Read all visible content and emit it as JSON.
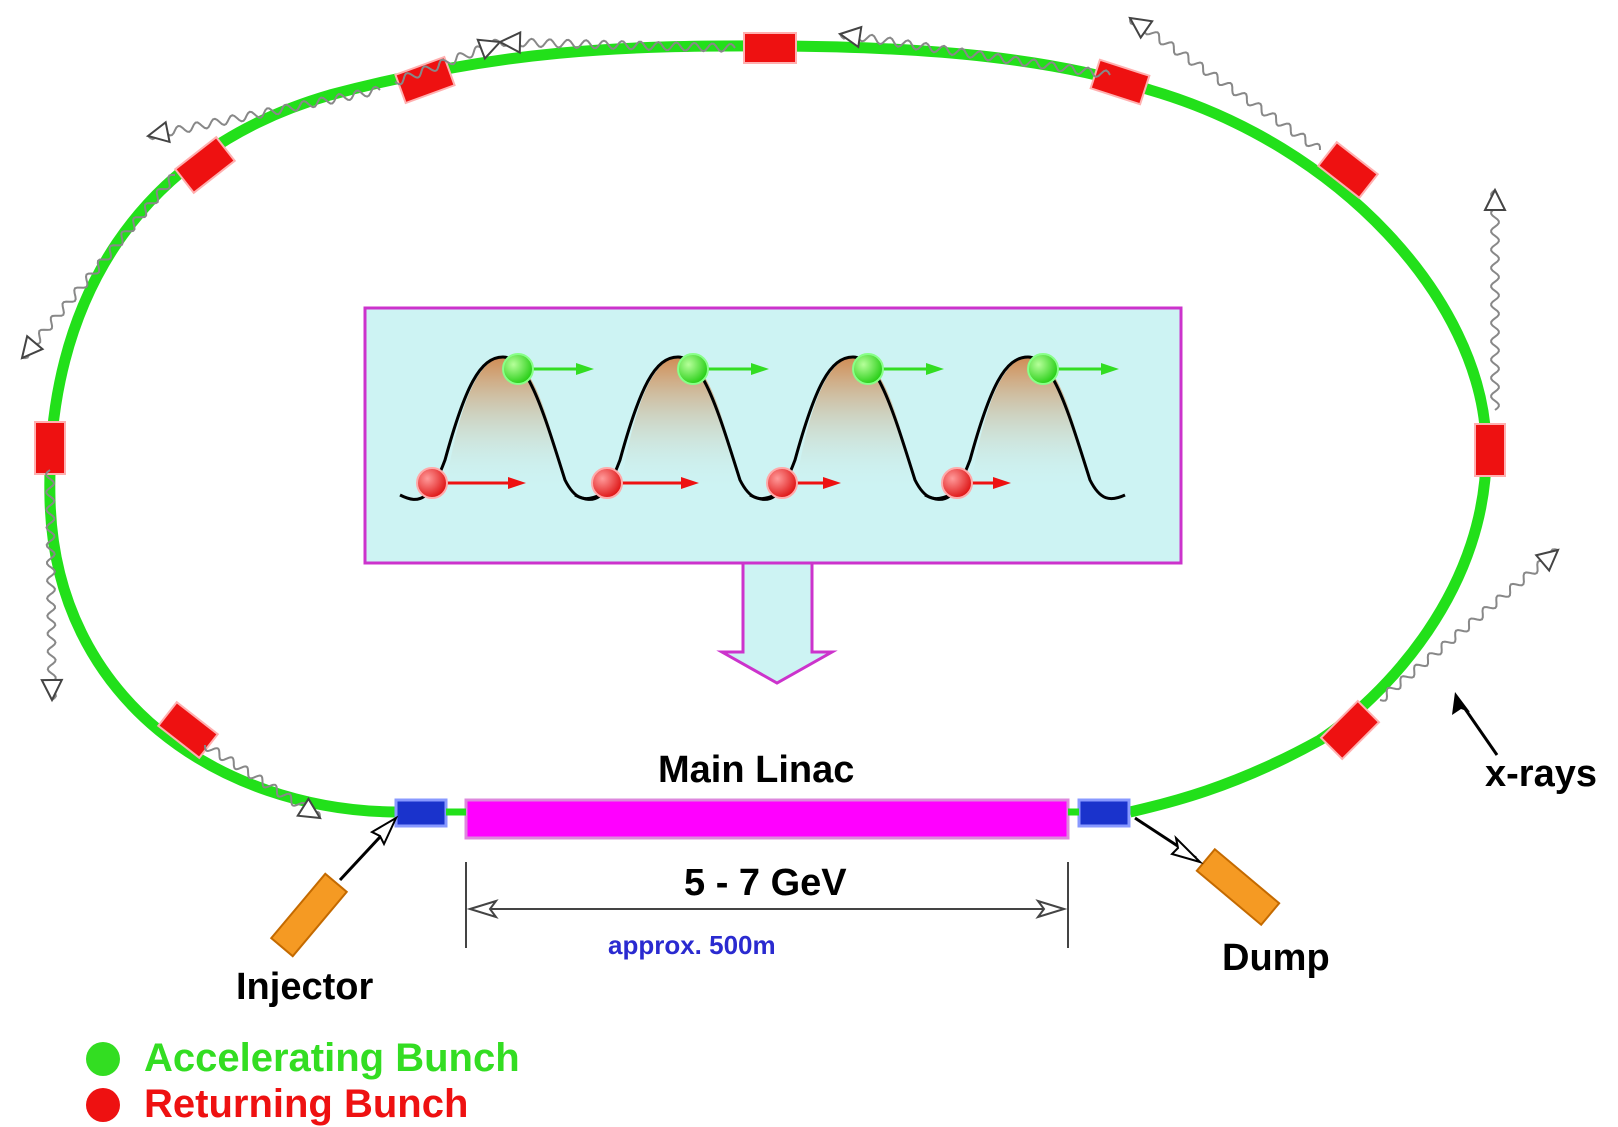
{
  "labels": {
    "main_linac": "Main Linac",
    "energy": "5 - 7 GeV",
    "length": "approx. 500m",
    "xrays": "x-rays",
    "injector": "Injector",
    "dump": "Dump"
  },
  "legend": [
    {
      "text": "Accelerating Bunch",
      "color": "#33dd22"
    },
    {
      "text": "Returning Bunch",
      "color": "#ee1111"
    }
  ],
  "colors": {
    "ring": "#22e01a",
    "bunch_magnet": "#ee1111",
    "linac": "#ff00ff",
    "inset_fill": "#cdf3f3",
    "inset_border": "#cc33cc",
    "coupler": "#1a33cc",
    "injector_dump": "#f59a23",
    "accelerating": "#33dd22",
    "returning": "#ee1111"
  }
}
